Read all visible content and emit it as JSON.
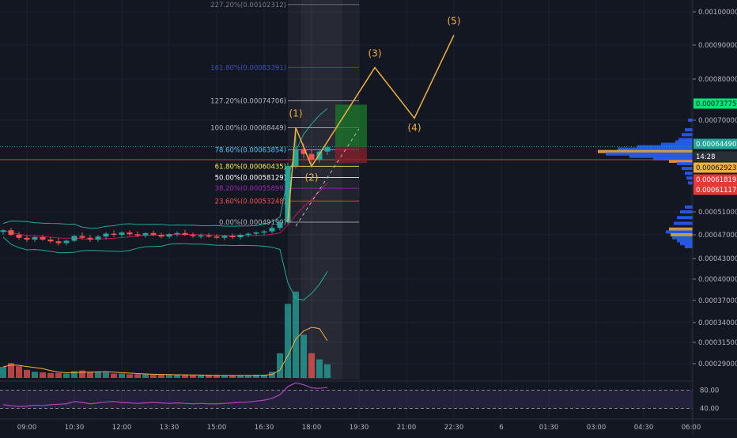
{
  "chart_data": {
    "type": "candlestick",
    "colors": {
      "background": "#131722",
      "grid": "#1e2230",
      "axis_text": "#b2b5be",
      "up": "#26a69a",
      "down": "#ef5350",
      "bollinger": "#26a69a",
      "basis": "#c2185b",
      "wave": "#f0b040",
      "rsi": "#ab47bc",
      "current_price": "#26a69a",
      "red_line": "#e53935"
    },
    "price_axis": {
      "ticks": [
        "0.00100000",
        "0.00090000",
        "0.00080000",
        "0.00070000",
        "0.00051000",
        "0.00047000",
        "0.00043000",
        "0.00040000",
        "0.00037000",
        "0.00034000",
        "0.00031500",
        "0.00029000"
      ],
      "tick_values": [
        0.001,
        0.0009,
        0.0008,
        0.0007,
        0.00051,
        0.00047,
        0.00043,
        0.0004,
        0.00037,
        0.00034,
        0.000315,
        0.00029
      ]
    },
    "time_axis": {
      "labels": [
        "09:00",
        "10:30",
        "12:00",
        "13:30",
        "15:00",
        "16:30",
        "18:00",
        "19:30",
        "21:00",
        "22:30",
        "6",
        "01:30",
        "03:00",
        "04:30",
        "06:00"
      ]
    },
    "price_badges": [
      {
        "label": "0.00073775",
        "value": 0.00073775,
        "color": "#00e676",
        "text_color": "#131722"
      },
      {
        "label": "0.00064490",
        "value": 0.0006449,
        "color": "#26a69a",
        "text_color": "#ffffff"
      },
      {
        "label": "14:28",
        "value": 0.000632,
        "color": "#2a2e39",
        "text_color": "#ffffff"
      },
      {
        "label": "0.00062923",
        "value": 0.00062923,
        "color": "#f0b040",
        "text_color": "#131722"
      },
      {
        "label": "0.00061819",
        "value": 0.00061819,
        "color": "#e53935",
        "text_color": "#ffffff"
      },
      {
        "label": "0.00061117",
        "value": 0.00061117,
        "color": "#e53935",
        "text_color": "#ffffff"
      }
    ],
    "fibonacci": [
      {
        "label": "227.20%(0.00102312)",
        "value": 0.00102312,
        "color": "#787b86"
      },
      {
        "label": "161.80%(0.00083391)",
        "value": 0.00083391,
        "color": "#3f51b5"
      },
      {
        "label": "127.20%(0.00074706)",
        "value": 0.00074706,
        "color": "#b2b5be"
      },
      {
        "label": "100.00%(0.00068449)",
        "value": 0.00068449,
        "color": "#b2b5be"
      },
      {
        "label": "78.60%(0.00063854)",
        "value": 0.00063854,
        "color": "#4fc3f7"
      },
      {
        "label": "61.80%(0.00060435)",
        "value": 0.00060435,
        "color": "#ffeb3b"
      },
      {
        "label": "50.00%(0.00058129)",
        "value": 0.00058129,
        "color": "#ffffff"
      },
      {
        "label": "38.20%(0.00055899)",
        "value": 0.00055899,
        "color": "#9c27b0"
      },
      {
        "label": "23.60%(0.00053248)",
        "value": 0.00053248,
        "color": "#ef5350"
      },
      {
        "label": "0.00%(0.00049199)",
        "value": 0.00049199,
        "color": "#b2b5be"
      }
    ],
    "waves": [
      {
        "label": "(1)",
        "time": 17.5,
        "price": 0.00068449
      },
      {
        "label": "(2)",
        "time": 18.0,
        "price": 0.00060435
      },
      {
        "label": "(3)",
        "time": 20.0,
        "price": 0.00083391
      },
      {
        "label": "(4)",
        "time": 21.25,
        "price": 0.000705
      },
      {
        "label": "(5)",
        "time": 22.5,
        "price": 0.00093
      }
    ],
    "rsi": {
      "levels": [
        "80.00",
        "40.00"
      ],
      "level_values": [
        80,
        40
      ]
    },
    "candles": [
      {
        "t": 8.25,
        "o": 0.000475,
        "h": 0.00048,
        "l": 0.00047,
        "c": 0.000478
      },
      {
        "t": 8.5,
        "o": 0.000478,
        "h": 0.000482,
        "l": 0.000468,
        "c": 0.00047
      },
      {
        "t": 8.75,
        "o": 0.00047,
        "h": 0.000475,
        "l": 0.000462,
        "c": 0.000465
      },
      {
        "t": 9.0,
        "o": 0.000465,
        "h": 0.00047,
        "l": 0.000458,
        "c": 0.000462
      },
      {
        "t": 9.25,
        "o": 0.000462,
        "h": 0.000468,
        "l": 0.000458,
        "c": 0.000466
      },
      {
        "t": 9.5,
        "o": 0.000466,
        "h": 0.00047,
        "l": 0.00046,
        "c": 0.000462
      },
      {
        "t": 9.75,
        "o": 0.000462,
        "h": 0.000466,
        "l": 0.000456,
        "c": 0.000459
      },
      {
        "t": 10.0,
        "o": 0.000459,
        "h": 0.000465,
        "l": 0.000452,
        "c": 0.000456
      },
      {
        "t": 10.25,
        "o": 0.000456,
        "h": 0.000462,
        "l": 0.000452,
        "c": 0.00046
      },
      {
        "t": 10.5,
        "o": 0.00046,
        "h": 0.00047,
        "l": 0.000458,
        "c": 0.000468
      },
      {
        "t": 10.75,
        "o": 0.000468,
        "h": 0.000474,
        "l": 0.000462,
        "c": 0.000465
      },
      {
        "t": 11.0,
        "o": 0.000465,
        "h": 0.00047,
        "l": 0.000458,
        "c": 0.000462
      },
      {
        "t": 11.25,
        "o": 0.000462,
        "h": 0.00047,
        "l": 0.000458,
        "c": 0.000467
      },
      {
        "t": 11.5,
        "o": 0.000467,
        "h": 0.000475,
        "l": 0.000462,
        "c": 0.000472
      },
      {
        "t": 11.75,
        "o": 0.000472,
        "h": 0.000478,
        "l": 0.000466,
        "c": 0.00047
      },
      {
        "t": 12.0,
        "o": 0.00047,
        "h": 0.000476,
        "l": 0.000466,
        "c": 0.000474
      },
      {
        "t": 12.25,
        "o": 0.000474,
        "h": 0.000478,
        "l": 0.000468,
        "c": 0.000471
      },
      {
        "t": 12.5,
        "o": 0.000471,
        "h": 0.000476,
        "l": 0.000466,
        "c": 0.000469
      },
      {
        "t": 12.75,
        "o": 0.000469,
        "h": 0.000474,
        "l": 0.000465,
        "c": 0.000473
      },
      {
        "t": 13.0,
        "o": 0.000473,
        "h": 0.000477,
        "l": 0.000468,
        "c": 0.00047
      },
      {
        "t": 13.25,
        "o": 0.00047,
        "h": 0.000474,
        "l": 0.000464,
        "c": 0.000467
      },
      {
        "t": 13.5,
        "o": 0.000467,
        "h": 0.000473,
        "l": 0.000464,
        "c": 0.000471
      },
      {
        "t": 13.75,
        "o": 0.000471,
        "h": 0.000476,
        "l": 0.000467,
        "c": 0.000473
      },
      {
        "t": 14.0,
        "o": 0.000473,
        "h": 0.000479,
        "l": 0.000468,
        "c": 0.00047
      },
      {
        "t": 14.25,
        "o": 0.00047,
        "h": 0.000474,
        "l": 0.000465,
        "c": 0.000468
      },
      {
        "t": 14.5,
        "o": 0.000468,
        "h": 0.000472,
        "l": 0.000464,
        "c": 0.000469
      },
      {
        "t": 14.75,
        "o": 0.000469,
        "h": 0.000473,
        "l": 0.000465,
        "c": 0.000467
      },
      {
        "t": 15.0,
        "o": 0.000467,
        "h": 0.000471,
        "l": 0.000463,
        "c": 0.000465
      },
      {
        "t": 15.25,
        "o": 0.000465,
        "h": 0.00047,
        "l": 0.000461,
        "c": 0.000468
      },
      {
        "t": 15.5,
        "o": 0.000468,
        "h": 0.000472,
        "l": 0.000463,
        "c": 0.000466
      },
      {
        "t": 15.75,
        "o": 0.000466,
        "h": 0.000472,
        "l": 0.000462,
        "c": 0.00047
      },
      {
        "t": 16.0,
        "o": 0.00047,
        "h": 0.000474,
        "l": 0.000466,
        "c": 0.000472
      },
      {
        "t": 16.25,
        "o": 0.000472,
        "h": 0.000476,
        "l": 0.000468,
        "c": 0.000474
      },
      {
        "t": 16.5,
        "o": 0.000474,
        "h": 0.000478,
        "l": 0.00047,
        "c": 0.000476
      },
      {
        "t": 16.75,
        "o": 0.000476,
        "h": 0.000486,
        "l": 0.000472,
        "c": 0.000482
      },
      {
        "t": 17.0,
        "o": 0.000482,
        "h": 0.000495,
        "l": 0.000478,
        "c": 0.000492
      },
      {
        "t": 17.25,
        "o": 0.000492,
        "h": 0.000612,
        "l": 0.000489,
        "c": 0.000605
      },
      {
        "t": 17.5,
        "o": 0.000605,
        "h": 0.000684,
        "l": 0.0006,
        "c": 0.00064
      },
      {
        "t": 17.75,
        "o": 0.00064,
        "h": 0.000652,
        "l": 0.000622,
        "c": 0.00063
      },
      {
        "t": 18.0,
        "o": 0.00063,
        "h": 0.00064,
        "l": 0.00061,
        "c": 0.000618
      },
      {
        "t": 18.25,
        "o": 0.000618,
        "h": 0.00064,
        "l": 0.000612,
        "c": 0.000635
      },
      {
        "t": 18.5,
        "o": 0.000635,
        "h": 0.000648,
        "l": 0.000628,
        "c": 0.000644
      }
    ],
    "volume": [
      {
        "t": 8.25,
        "v": 0.018,
        "up": true
      },
      {
        "t": 8.5,
        "v": 0.024,
        "up": false
      },
      {
        "t": 8.75,
        "v": 0.019,
        "up": false
      },
      {
        "t": 9.0,
        "v": 0.013,
        "up": false
      },
      {
        "t": 9.25,
        "v": 0.01,
        "up": true
      },
      {
        "t": 9.5,
        "v": 0.009,
        "up": false
      },
      {
        "t": 9.75,
        "v": 0.008,
        "up": false
      },
      {
        "t": 10.0,
        "v": 0.008,
        "up": false
      },
      {
        "t": 10.25,
        "v": 0.007,
        "up": true
      },
      {
        "t": 10.5,
        "v": 0.011,
        "up": true
      },
      {
        "t": 10.75,
        "v": 0.012,
        "up": false
      },
      {
        "t": 11.0,
        "v": 0.009,
        "up": false
      },
      {
        "t": 11.25,
        "v": 0.01,
        "up": true
      },
      {
        "t": 11.5,
        "v": 0.009,
        "up": true
      },
      {
        "t": 11.75,
        "v": 0.007,
        "up": false
      },
      {
        "t": 12.0,
        "v": 0.007,
        "up": true
      },
      {
        "t": 12.25,
        "v": 0.006,
        "up": false
      },
      {
        "t": 12.5,
        "v": 0.006,
        "up": false
      },
      {
        "t": 12.75,
        "v": 0.006,
        "up": true
      },
      {
        "t": 13.0,
        "v": 0.005,
        "up": false
      },
      {
        "t": 13.25,
        "v": 0.005,
        "up": false
      },
      {
        "t": 13.5,
        "v": 0.005,
        "up": true
      },
      {
        "t": 13.75,
        "v": 0.005,
        "up": true
      },
      {
        "t": 14.0,
        "v": 0.005,
        "up": false
      },
      {
        "t": 14.25,
        "v": 0.004,
        "up": false
      },
      {
        "t": 14.5,
        "v": 0.004,
        "up": true
      },
      {
        "t": 14.75,
        "v": 0.004,
        "up": false
      },
      {
        "t": 15.0,
        "v": 0.004,
        "up": false
      },
      {
        "t": 15.25,
        "v": 0.004,
        "up": true
      },
      {
        "t": 15.5,
        "v": 0.004,
        "up": false
      },
      {
        "t": 15.75,
        "v": 0.004,
        "up": true
      },
      {
        "t": 16.0,
        "v": 0.004,
        "up": true
      },
      {
        "t": 16.25,
        "v": 0.005,
        "up": true
      },
      {
        "t": 16.5,
        "v": 0.005,
        "up": true
      },
      {
        "t": 16.75,
        "v": 0.01,
        "up": true
      },
      {
        "t": 17.0,
        "v": 0.04,
        "up": true
      },
      {
        "t": 17.25,
        "v": 0.12,
        "up": true
      },
      {
        "t": 17.5,
        "v": 0.14,
        "up": true
      },
      {
        "t": 17.75,
        "v": 0.07,
        "up": true
      },
      {
        "t": 18.0,
        "v": 0.04,
        "up": false
      },
      {
        "t": 18.25,
        "v": 0.03,
        "up": true
      },
      {
        "t": 18.5,
        "v": 0.022,
        "up": true
      }
    ]
  }
}
